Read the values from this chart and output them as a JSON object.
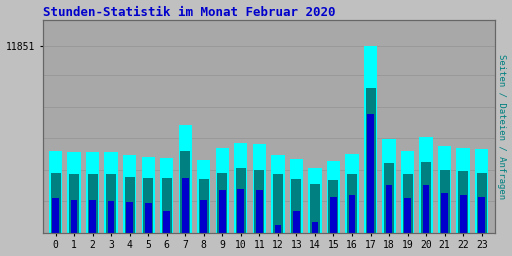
{
  "title": "Stunden-Statistik im Monat Februar 2020",
  "ylabel_right": "Seiten / Dateien / Anfragen",
  "ytick_label": "11851",
  "background_color": "#c0c0c0",
  "plot_bg_color": "#a8a8a8",
  "title_color": "#0000cc",
  "bar_width": 0.72,
  "hours": [
    0,
    1,
    2,
    3,
    4,
    5,
    6,
    7,
    8,
    9,
    10,
    11,
    12,
    13,
    14,
    15,
    16,
    17,
    18,
    19,
    20,
    21,
    22,
    23
  ],
  "seiten": [
    5200,
    5150,
    5100,
    5100,
    4900,
    4800,
    4750,
    6800,
    4600,
    5400,
    5700,
    5600,
    4950,
    4650,
    4100,
    4550,
    5000,
    11851,
    5950,
    5200,
    6100,
    5500,
    5400,
    5300
  ],
  "dateien": [
    3800,
    3700,
    3700,
    3700,
    3550,
    3500,
    3450,
    5200,
    3400,
    3800,
    4100,
    4000,
    3700,
    3400,
    3100,
    3350,
    3750,
    9200,
    4400,
    3750,
    4500,
    4000,
    3900,
    3800
  ],
  "anfragen": [
    2200,
    2100,
    2100,
    2000,
    1950,
    1900,
    1400,
    3500,
    2100,
    2700,
    2800,
    2700,
    500,
    1400,
    700,
    2300,
    2400,
    7500,
    3000,
    2200,
    3000,
    2500,
    2400,
    2300
  ],
  "color_seiten": "#00ffff",
  "color_dateien": "#008080",
  "color_anfragen": "#0000cc",
  "ylim_max": 13500,
  "ytick_val": 11851,
  "grid_color": "#999999",
  "grid_levels": [
    2000,
    4000,
    6000,
    8000,
    10000,
    11851
  ]
}
